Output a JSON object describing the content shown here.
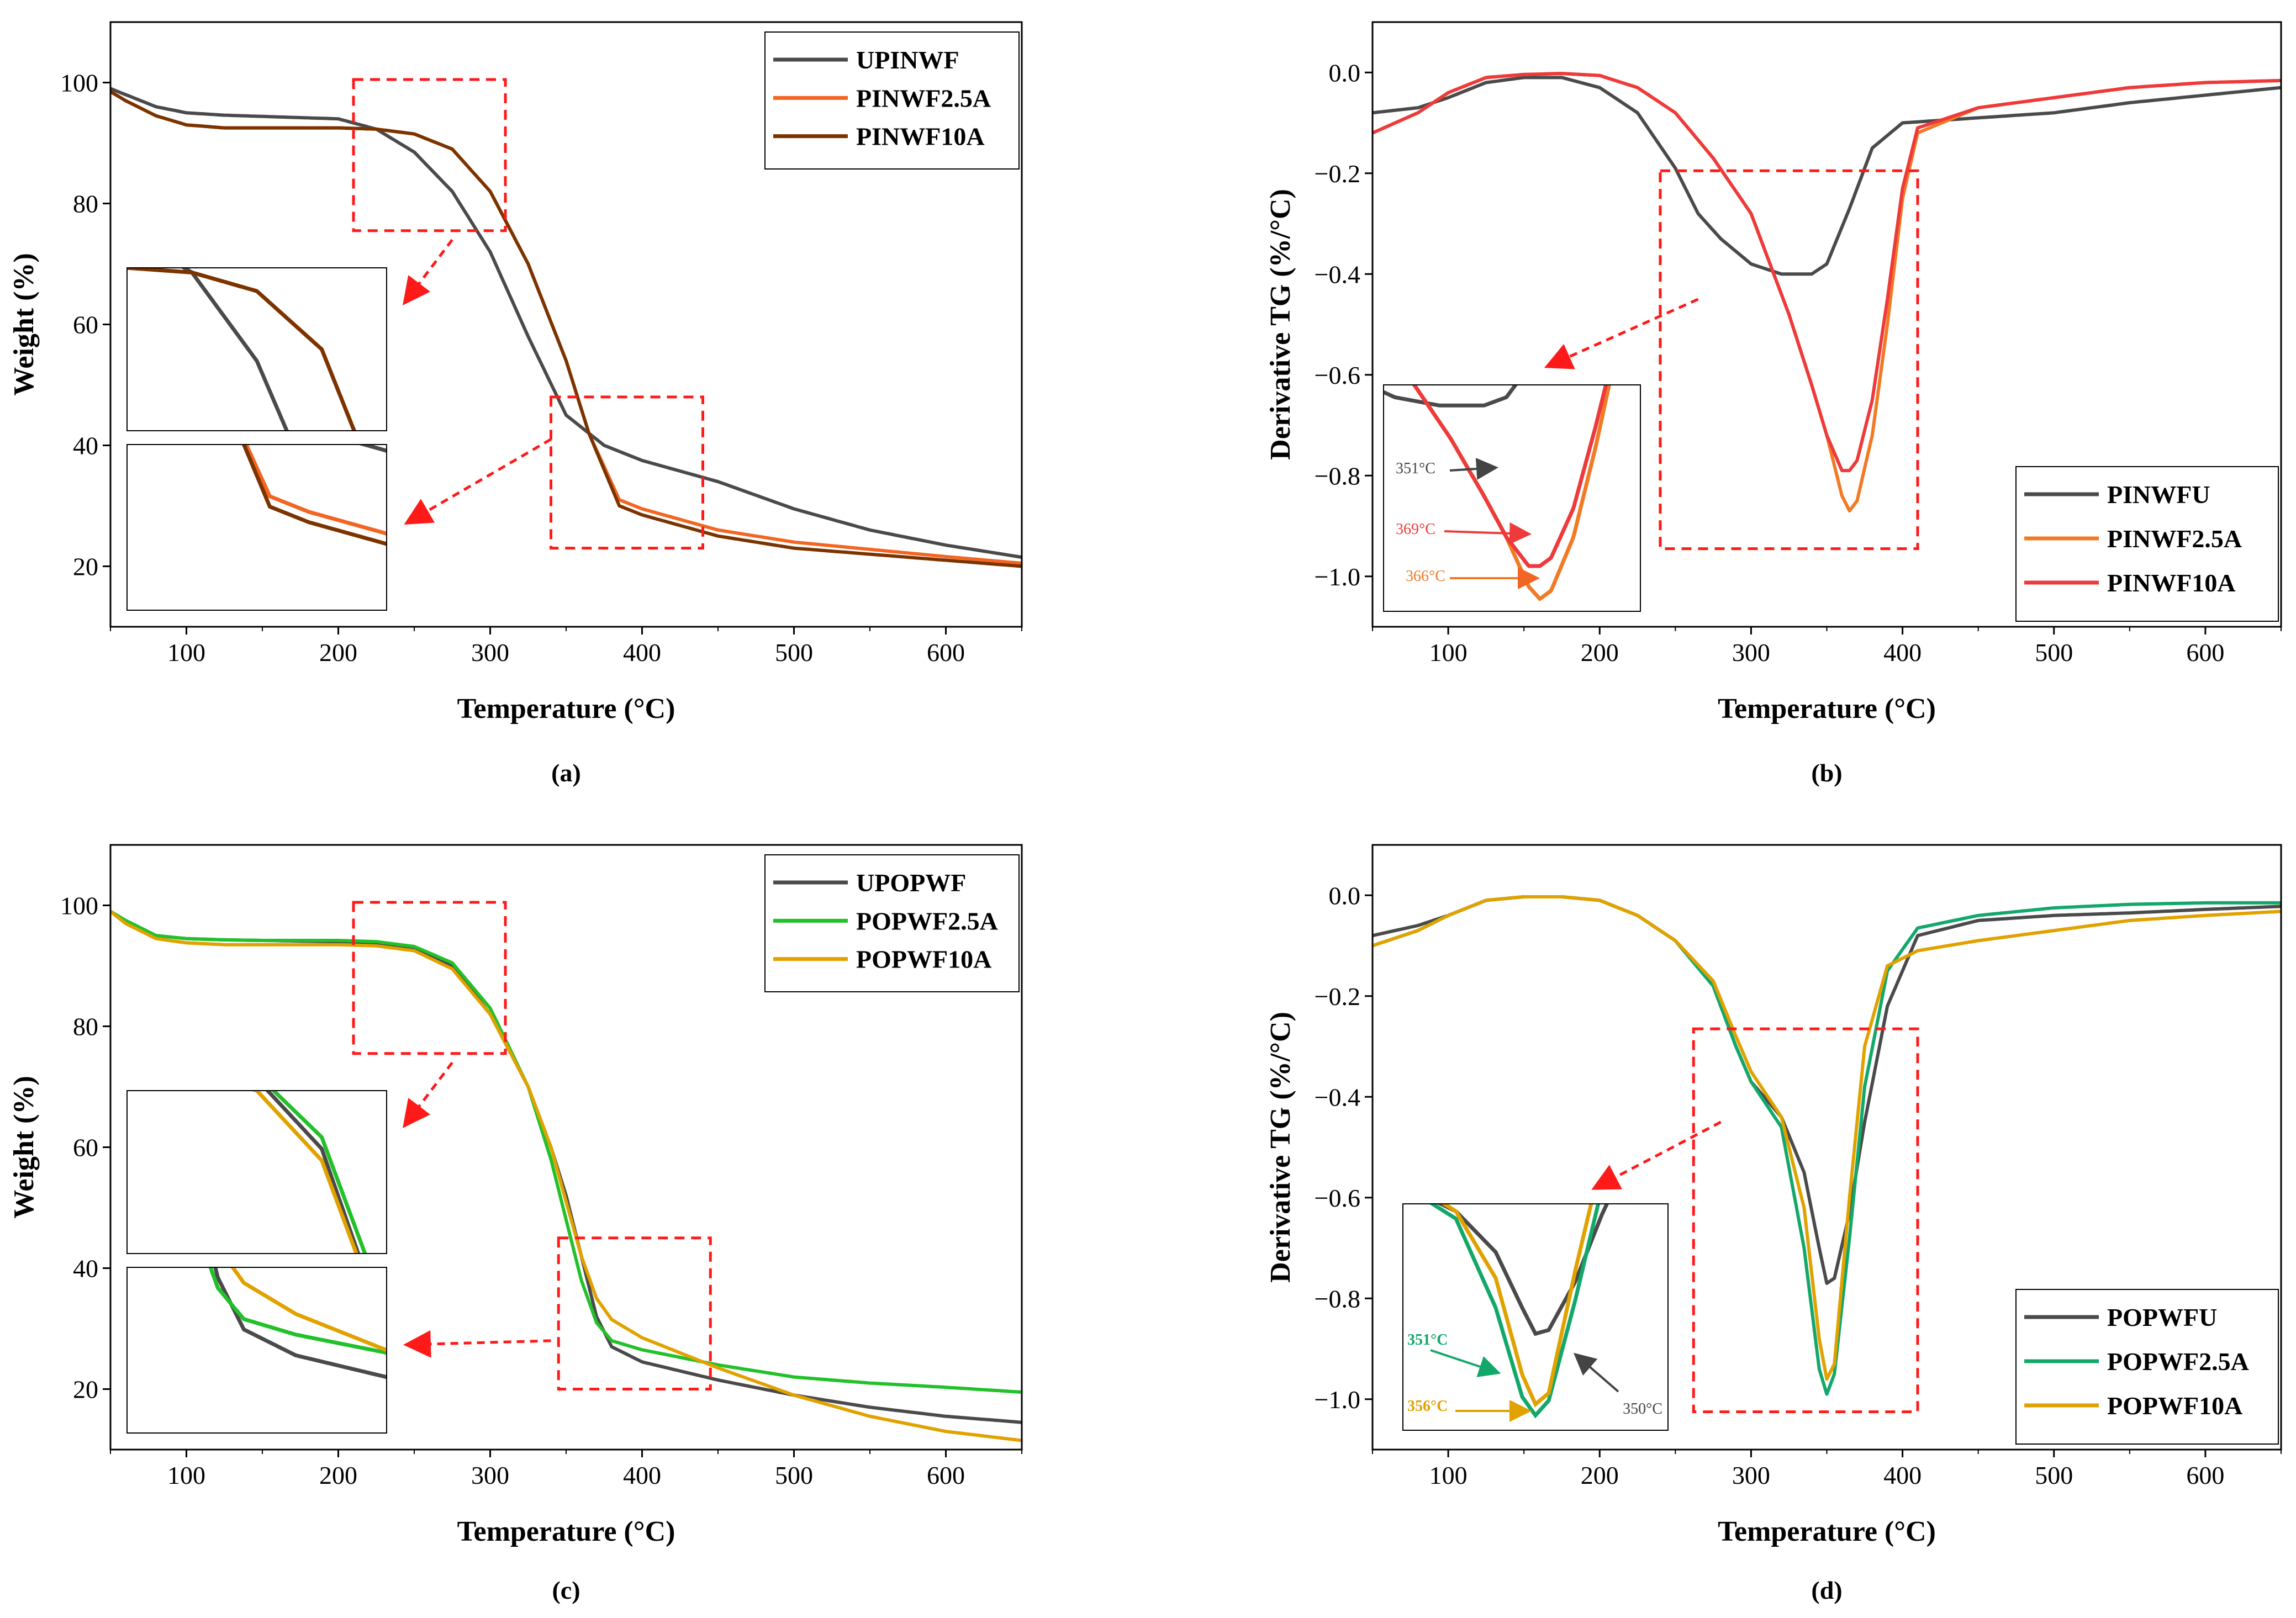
{
  "figure": {
    "panel_count": 4
  },
  "chart_data": [
    {
      "id": "a",
      "type": "line",
      "panel_label": "(a)",
      "xlabel": "Temperature (°C)",
      "ylabel": "Weight (%)",
      "xlim": [
        50,
        650
      ],
      "ylim": [
        10,
        110
      ],
      "xticks": [
        100,
        200,
        300,
        400,
        500,
        600
      ],
      "yticks": [
        20,
        40,
        60,
        80,
        100
      ],
      "legend": "top-right",
      "series": [
        {
          "name": "UPINWF",
          "color": "#4a4a4a",
          "x": [
            50,
            60,
            80,
            100,
            125,
            150,
            200,
            225,
            250,
            275,
            300,
            325,
            350,
            375,
            400,
            450,
            500,
            550,
            600,
            650
          ],
          "y": [
            99,
            98,
            96,
            95,
            94.6,
            94.4,
            94,
            92.3,
            88.5,
            82,
            72,
            58,
            45,
            40,
            37.5,
            34,
            29.5,
            26,
            23.5,
            21.5
          ]
        },
        {
          "name": "PINWF2.5A",
          "color": "#f26522",
          "x": [
            50,
            60,
            80,
            100,
            125,
            150,
            200,
            225,
            250,
            275,
            300,
            325,
            350,
            365,
            385,
            400,
            450,
            500,
            550,
            600,
            650
          ],
          "y": [
            98.5,
            97,
            94.5,
            93,
            92.5,
            92.5,
            92.5,
            92.3,
            91.5,
            89,
            82,
            70,
            54,
            42,
            31,
            29.5,
            26,
            24,
            22.8,
            21.6,
            20.5
          ]
        },
        {
          "name": "PINWF10A",
          "color": "#7b3300",
          "x": [
            50,
            60,
            80,
            100,
            125,
            150,
            200,
            225,
            250,
            275,
            300,
            325,
            350,
            365,
            385,
            400,
            450,
            500,
            550,
            600,
            650
          ],
          "y": [
            98.5,
            97,
            94.5,
            93,
            92.5,
            92.5,
            92.5,
            92.3,
            91.5,
            89,
            82,
            70,
            54,
            42,
            30,
            28.5,
            25,
            23,
            22,
            21,
            20
          ]
        }
      ],
      "highlight_boxes": 2,
      "insets": 2
    },
    {
      "id": "b",
      "type": "line",
      "panel_label": "(b)",
      "xlabel": "Temperature (°C)",
      "ylabel": "Derivative TG (%/°C)",
      "xlim": [
        50,
        650
      ],
      "ylim": [
        -1.1,
        0.1
      ],
      "xticks": [
        100,
        200,
        300,
        400,
        500,
        600
      ],
      "yticks": [
        0.0,
        -0.2,
        -0.4,
        -0.6,
        -0.8,
        -1.0
      ],
      "legend": "bottom-right",
      "series": [
        {
          "name": "PINWFU",
          "color": "#4a4a4a",
          "x": [
            50,
            80,
            100,
            125,
            150,
            175,
            200,
            225,
            250,
            265,
            280,
            300,
            320,
            340,
            350,
            365,
            380,
            400,
            450,
            500,
            550,
            600,
            650
          ],
          "y": [
            -0.08,
            -0.07,
            -0.05,
            -0.02,
            -0.01,
            -0.01,
            -0.03,
            -0.08,
            -0.19,
            -0.28,
            -0.33,
            -0.38,
            -0.4,
            -0.4,
            -0.38,
            -0.27,
            -0.15,
            -0.1,
            -0.09,
            -0.08,
            -0.06,
            -0.045,
            -0.03
          ]
        },
        {
          "name": "PINWF2.5A",
          "color": "#f27a24",
          "x": [
            50,
            80,
            100,
            125,
            150,
            175,
            200,
            225,
            250,
            275,
            300,
            325,
            340,
            350,
            360,
            365,
            370,
            380,
            390,
            400,
            410,
            450,
            500,
            550,
            600,
            650
          ],
          "y": [
            -0.12,
            -0.08,
            -0.04,
            -0.01,
            -0.004,
            -0.002,
            -0.006,
            -0.03,
            -0.08,
            -0.17,
            -0.28,
            -0.48,
            -0.62,
            -0.72,
            -0.84,
            -0.87,
            -0.85,
            -0.72,
            -0.5,
            -0.25,
            -0.12,
            -0.07,
            -0.05,
            -0.03,
            -0.02,
            -0.016
          ]
        },
        {
          "name": "PINWF10A",
          "color": "#ee3a3a",
          "x": [
            50,
            80,
            100,
            125,
            150,
            175,
            200,
            225,
            250,
            275,
            300,
            325,
            340,
            350,
            360,
            365,
            370,
            380,
            390,
            400,
            410,
            450,
            500,
            550,
            600,
            650
          ],
          "y": [
            -0.12,
            -0.08,
            -0.04,
            -0.01,
            -0.004,
            -0.002,
            -0.006,
            -0.03,
            -0.08,
            -0.17,
            -0.28,
            -0.48,
            -0.62,
            -0.72,
            -0.79,
            -0.79,
            -0.77,
            -0.65,
            -0.45,
            -0.23,
            -0.11,
            -0.07,
            -0.05,
            -0.03,
            -0.02,
            -0.016
          ]
        }
      ],
      "callouts": [
        {
          "label": "351°C",
          "color": "#444444"
        },
        {
          "label": "369°C",
          "color": "#ee3a3a"
        },
        {
          "label": "366°C",
          "color": "#f27a24"
        }
      ]
    },
    {
      "id": "c",
      "type": "line",
      "panel_label": "(c)",
      "xlabel": "Temperature (°C)",
      "ylabel": "Weight (%)",
      "xlim": [
        50,
        650
      ],
      "ylim": [
        10,
        110
      ],
      "xticks": [
        100,
        200,
        300,
        400,
        500,
        600
      ],
      "yticks": [
        20,
        40,
        60,
        80,
        100
      ],
      "legend": "top-right",
      "series": [
        {
          "name": "UPOPWF",
          "color": "#4a4a4a",
          "x": [
            50,
            60,
            80,
            100,
            125,
            150,
            200,
            225,
            250,
            275,
            300,
            325,
            340,
            350,
            360,
            370,
            380,
            400,
            450,
            500,
            550,
            600,
            650
          ],
          "y": [
            99,
            97.5,
            95,
            94.5,
            94.3,
            94.2,
            94,
            93.8,
            93,
            90,
            82,
            70,
            60,
            52,
            42,
            32,
            27,
            24.5,
            21.5,
            19,
            17,
            15.5,
            14.5
          ]
        },
        {
          "name": "POPWF2.5A",
          "color": "#22c12a",
          "x": [
            50,
            60,
            80,
            100,
            125,
            150,
            200,
            225,
            250,
            275,
            300,
            325,
            340,
            350,
            360,
            370,
            380,
            400,
            450,
            500,
            550,
            600,
            650
          ],
          "y": [
            99,
            97.5,
            95,
            94.5,
            94.3,
            94.2,
            94.2,
            94,
            93.2,
            90.5,
            83,
            70,
            58,
            48,
            38,
            31,
            28,
            26.5,
            24,
            22,
            21,
            20.3,
            19.5
          ]
        },
        {
          "name": "POPWF10A",
          "color": "#e1a200",
          "x": [
            50,
            60,
            80,
            100,
            125,
            150,
            200,
            225,
            250,
            275,
            300,
            325,
            340,
            350,
            360,
            370,
            380,
            400,
            450,
            500,
            550,
            600,
            650
          ],
          "y": [
            99,
            97,
            94.5,
            93.8,
            93.5,
            93.5,
            93.5,
            93.3,
            92.5,
            89.5,
            82,
            70,
            60,
            51,
            42,
            35,
            31.5,
            28.5,
            23.5,
            19,
            15.5,
            13,
            11.5
          ]
        }
      ],
      "highlight_boxes": 2,
      "insets": 2
    },
    {
      "id": "d",
      "type": "line",
      "panel_label": "(d)",
      "xlabel": "Temperature (°C)",
      "ylabel": "Derivative TG (%/°C)",
      "xlim": [
        50,
        650
      ],
      "ylim": [
        -1.1,
        0.1
      ],
      "xticks": [
        100,
        200,
        300,
        400,
        500,
        600
      ],
      "yticks": [
        0.0,
        -0.2,
        -0.4,
        -0.6,
        -0.8,
        -1.0
      ],
      "legend": "bottom-right",
      "series": [
        {
          "name": "POPWFU",
          "color": "#4a4a4a",
          "x": [
            50,
            80,
            100,
            125,
            150,
            175,
            200,
            225,
            250,
            275,
            290,
            300,
            320,
            335,
            345,
            350,
            355,
            365,
            375,
            390,
            410,
            450,
            500,
            550,
            600,
            650
          ],
          "y": [
            -0.08,
            -0.06,
            -0.04,
            -0.01,
            -0.003,
            -0.003,
            -0.01,
            -0.04,
            -0.09,
            -0.18,
            -0.3,
            -0.37,
            -0.44,
            -0.55,
            -0.7,
            -0.77,
            -0.76,
            -0.63,
            -0.45,
            -0.22,
            -0.08,
            -0.05,
            -0.04,
            -0.035,
            -0.028,
            -0.022
          ]
        },
        {
          "name": "POPWF2.5A",
          "color": "#13a86b",
          "x": [
            50,
            80,
            100,
            125,
            150,
            175,
            200,
            225,
            250,
            275,
            290,
            300,
            320,
            335,
            345,
            350,
            355,
            365,
            375,
            390,
            410,
            450,
            500,
            550,
            600,
            650
          ],
          "y": [
            -0.1,
            -0.07,
            -0.04,
            -0.01,
            -0.003,
            -0.003,
            -0.01,
            -0.04,
            -0.09,
            -0.18,
            -0.3,
            -0.37,
            -0.46,
            -0.7,
            -0.94,
            -0.99,
            -0.95,
            -0.68,
            -0.38,
            -0.15,
            -0.065,
            -0.04,
            -0.025,
            -0.018,
            -0.015,
            -0.015
          ]
        },
        {
          "name": "POPWF10A",
          "color": "#e1a200",
          "x": [
            50,
            80,
            100,
            125,
            150,
            175,
            200,
            225,
            250,
            275,
            290,
            300,
            320,
            335,
            345,
            350,
            355,
            365,
            375,
            390,
            410,
            450,
            500,
            550,
            600,
            650
          ],
          "y": [
            -0.1,
            -0.07,
            -0.04,
            -0.01,
            -0.003,
            -0.003,
            -0.01,
            -0.04,
            -0.09,
            -0.17,
            -0.28,
            -0.35,
            -0.44,
            -0.62,
            -0.88,
            -0.96,
            -0.93,
            -0.6,
            -0.3,
            -0.14,
            -0.11,
            -0.09,
            -0.07,
            -0.05,
            -0.04,
            -0.032
          ]
        }
      ],
      "callouts": [
        {
          "label": "351°C",
          "color": "#13a86b"
        },
        {
          "label": "356°C",
          "color": "#e1a200"
        },
        {
          "label": "350°C",
          "color": "#444444"
        }
      ]
    }
  ]
}
